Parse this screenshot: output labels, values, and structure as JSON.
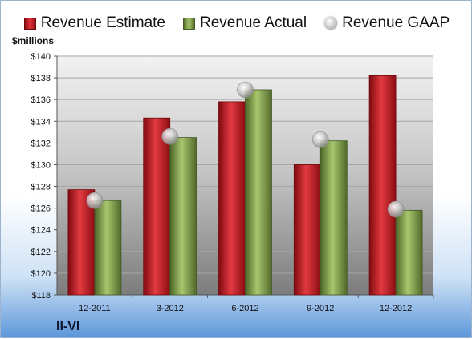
{
  "chart_data": {
    "type": "bar",
    "unit_label": "$millions",
    "categories": [
      "12-2011",
      "3-2012",
      "6-2012",
      "9-2012",
      "12-2012"
    ],
    "series": [
      {
        "name": "Revenue Estimate",
        "kind": "bar",
        "color": "#c8232a",
        "values": [
          127.7,
          134.3,
          135.8,
          130.0,
          138.2
        ]
      },
      {
        "name": "Revenue Actual",
        "kind": "bar",
        "color": "#86a84a",
        "values": [
          126.7,
          132.5,
          136.9,
          132.2,
          125.8
        ]
      },
      {
        "name": "Revenue GAAP",
        "kind": "marker",
        "color": "#c8c8c8",
        "values": [
          126.7,
          132.6,
          136.9,
          132.3,
          125.9
        ]
      }
    ],
    "ylim": [
      118,
      140
    ],
    "yticks": [
      "$118",
      "$120",
      "$122",
      "$124",
      "$126",
      "$128",
      "$130",
      "$132",
      "$134",
      "$136",
      "$138",
      "$140"
    ],
    "grid": true,
    "legend_position": "top"
  },
  "company": "II-VI"
}
